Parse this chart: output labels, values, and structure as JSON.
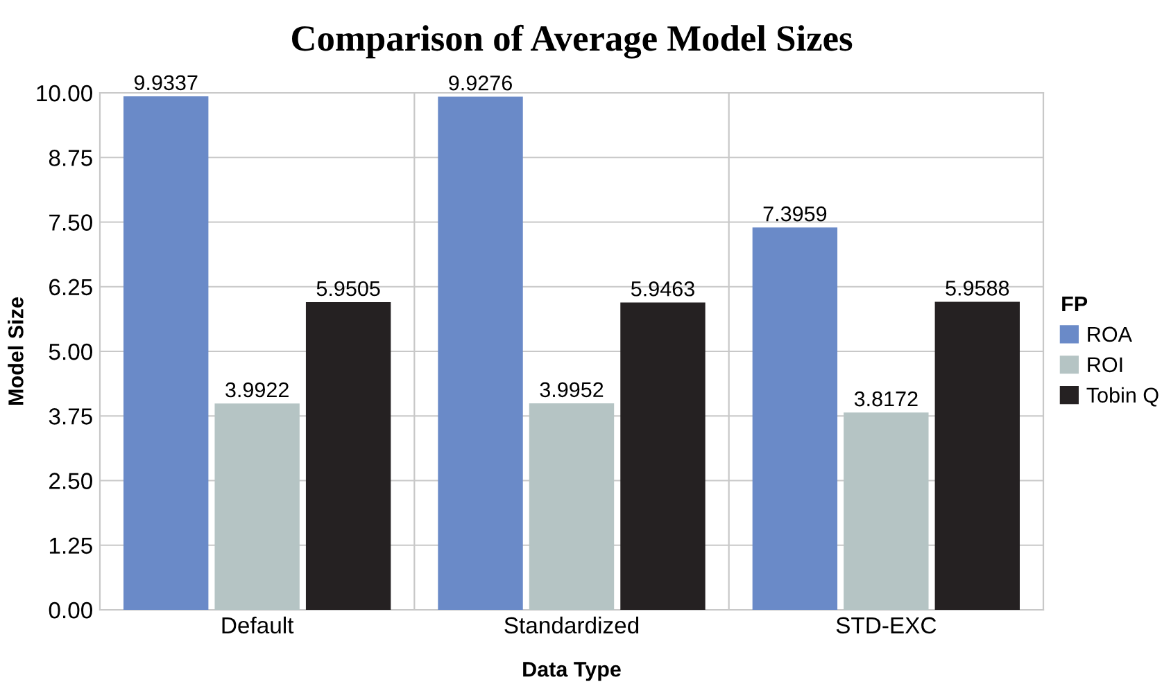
{
  "chart_data": {
    "type": "bar",
    "title": "Comparison of Average Model Sizes",
    "xlabel": "Data Type",
    "ylabel": "Model Size",
    "legend_title": "FP",
    "categories": [
      "Default",
      "Standardized",
      "STD-EXC"
    ],
    "series": [
      {
        "name": "ROA",
        "color": "#6a8ac8",
        "values": [
          9.9337,
          9.9276,
          7.3959
        ]
      },
      {
        "name": "ROI",
        "color": "#b5c4c4",
        "values": [
          3.9922,
          3.9952,
          3.8172
        ]
      },
      {
        "name": "Tobin Q",
        "color": "#252122",
        "values": [
          5.9505,
          5.9463,
          5.9588
        ]
      }
    ],
    "ylim": [
      0,
      10
    ],
    "yticks": [
      {
        "value": 0,
        "label": "0.00"
      },
      {
        "value": 1.25,
        "label": "1.25"
      },
      {
        "value": 2.5,
        "label": "2.50"
      },
      {
        "value": 3.75,
        "label": "3.75"
      },
      {
        "value": 5,
        "label": "5.00"
      },
      {
        "value": 6.25,
        "label": "6.25"
      },
      {
        "value": 7.5,
        "label": "7.50"
      },
      {
        "value": 8.75,
        "label": "8.75"
      },
      {
        "value": 10,
        "label": "10.00"
      }
    ],
    "grid": true,
    "legend": "right",
    "data_labels": true
  }
}
